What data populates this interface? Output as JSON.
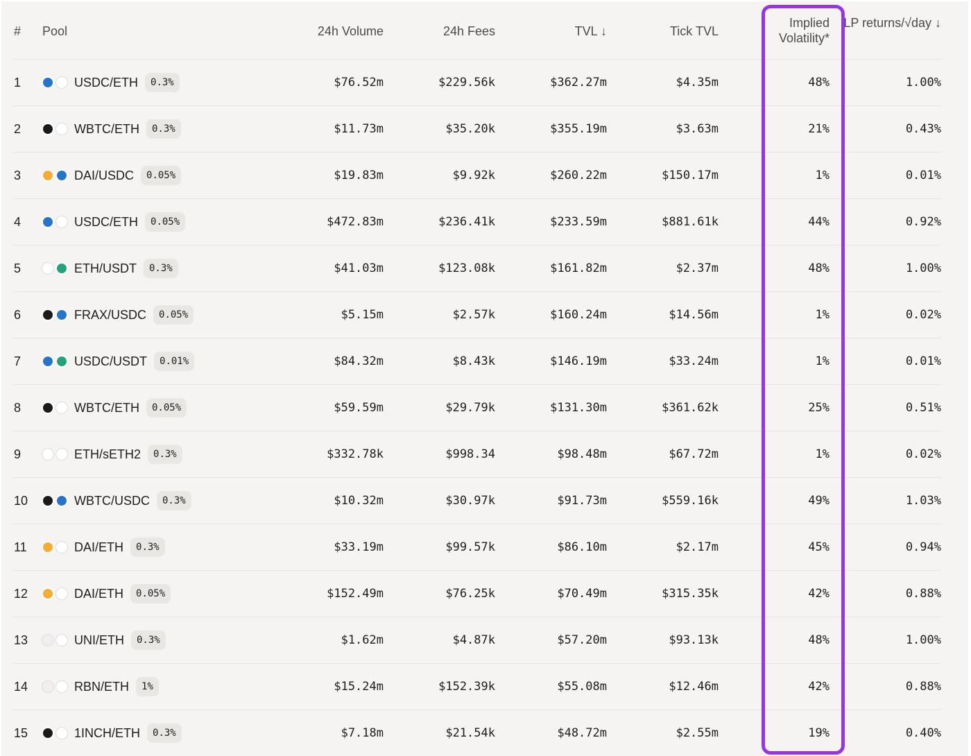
{
  "table": {
    "header": [
      "#",
      "Pool",
      "24h Volume",
      "24h Fees",
      "TVL ↓",
      "Tick TVL",
      "Implied Volatility*",
      "LP returns/√day ↓"
    ],
    "rows": [
      {
        "rank": "1",
        "pool": "USDC/ETH",
        "fee": "0.3%",
        "volume": "$76.52m",
        "fees": "$229.56k",
        "tvl": "$362.27m",
        "tick_tvl": "$4.35m",
        "iv": "48%",
        "lp_returns": "1.00%"
      },
      {
        "rank": "2",
        "pool": "WBTC/ETH",
        "fee": "0.3%",
        "volume": "$11.73m",
        "fees": "$35.20k",
        "tvl": "$355.19m",
        "tick_tvl": "$3.63m",
        "iv": "21%",
        "lp_returns": "0.43%"
      },
      {
        "rank": "3",
        "pool": "DAI/USDC",
        "fee": "0.05%",
        "volume": "$19.83m",
        "fees": "$9.92k",
        "tvl": "$260.22m",
        "tick_tvl": "$150.17m",
        "iv": "1%",
        "lp_returns": "0.01%"
      },
      {
        "rank": "4",
        "pool": "USDC/ETH",
        "fee": "0.05%",
        "volume": "$472.83m",
        "fees": "$236.41k",
        "tvl": "$233.59m",
        "tick_tvl": "$881.61k",
        "iv": "44%",
        "lp_returns": "0.92%"
      },
      {
        "rank": "5",
        "pool": "ETH/USDT",
        "fee": "0.3%",
        "volume": "$41.03m",
        "fees": "$123.08k",
        "tvl": "$161.82m",
        "tick_tvl": "$2.37m",
        "iv": "48%",
        "lp_returns": "1.00%"
      },
      {
        "rank": "6",
        "pool": "FRAX/USDC",
        "fee": "0.05%",
        "volume": "$5.15m",
        "fees": "$2.57k",
        "tvl": "$160.24m",
        "tick_tvl": "$14.56m",
        "iv": "1%",
        "lp_returns": "0.02%"
      },
      {
        "rank": "7",
        "pool": "USDC/USDT",
        "fee": "0.01%",
        "volume": "$84.32m",
        "fees": "$8.43k",
        "tvl": "$146.19m",
        "tick_tvl": "$33.24m",
        "iv": "1%",
        "lp_returns": "0.01%"
      },
      {
        "rank": "8",
        "pool": "WBTC/ETH",
        "fee": "0.05%",
        "volume": "$59.59m",
        "fees": "$29.79k",
        "tvl": "$131.30m",
        "tick_tvl": "$361.62k",
        "iv": "25%",
        "lp_returns": "0.51%"
      },
      {
        "rank": "9",
        "pool": "ETH/sETH2",
        "fee": "0.3%",
        "volume": "$332.78k",
        "fees": "$998.34",
        "tvl": "$98.48m",
        "tick_tvl": "$67.72m",
        "iv": "1%",
        "lp_returns": "0.02%"
      },
      {
        "rank": "10",
        "pool": "WBTC/USDC",
        "fee": "0.3%",
        "volume": "$10.32m",
        "fees": "$30.97k",
        "tvl": "$91.73m",
        "tick_tvl": "$559.16k",
        "iv": "49%",
        "lp_returns": "1.03%"
      },
      {
        "rank": "11",
        "pool": "DAI/ETH",
        "fee": "0.3%",
        "volume": "$33.19m",
        "fees": "$99.57k",
        "tvl": "$86.10m",
        "tick_tvl": "$2.17m",
        "iv": "45%",
        "lp_returns": "0.94%"
      },
      {
        "rank": "12",
        "pool": "DAI/ETH",
        "fee": "0.05%",
        "volume": "$152.49m",
        "fees": "$76.25k",
        "tvl": "$70.49m",
        "tick_tvl": "$315.35k",
        "iv": "42%",
        "lp_returns": "0.88%"
      },
      {
        "rank": "13",
        "pool": "UNI/ETH",
        "fee": "0.3%",
        "volume": "$1.62m",
        "fees": "$4.87k",
        "tvl": "$57.20m",
        "tick_tvl": "$93.13k",
        "iv": "48%",
        "lp_returns": "1.00%"
      },
      {
        "rank": "14",
        "pool": "RBN/ETH",
        "fee": "1%",
        "volume": "$15.24m",
        "fees": "$152.39k",
        "tvl": "$55.08m",
        "tick_tvl": "$12.46m",
        "iv": "42%",
        "lp_returns": "0.88%"
      },
      {
        "rank": "15",
        "pool": "1INCH/ETH",
        "fee": "0.3%",
        "volume": "$7.18m",
        "fees": "$21.54k",
        "tvl": "$48.72m",
        "tick_tvl": "$2.55m",
        "iv": "19%",
        "lp_returns": "0.40%"
      }
    ]
  }
}
